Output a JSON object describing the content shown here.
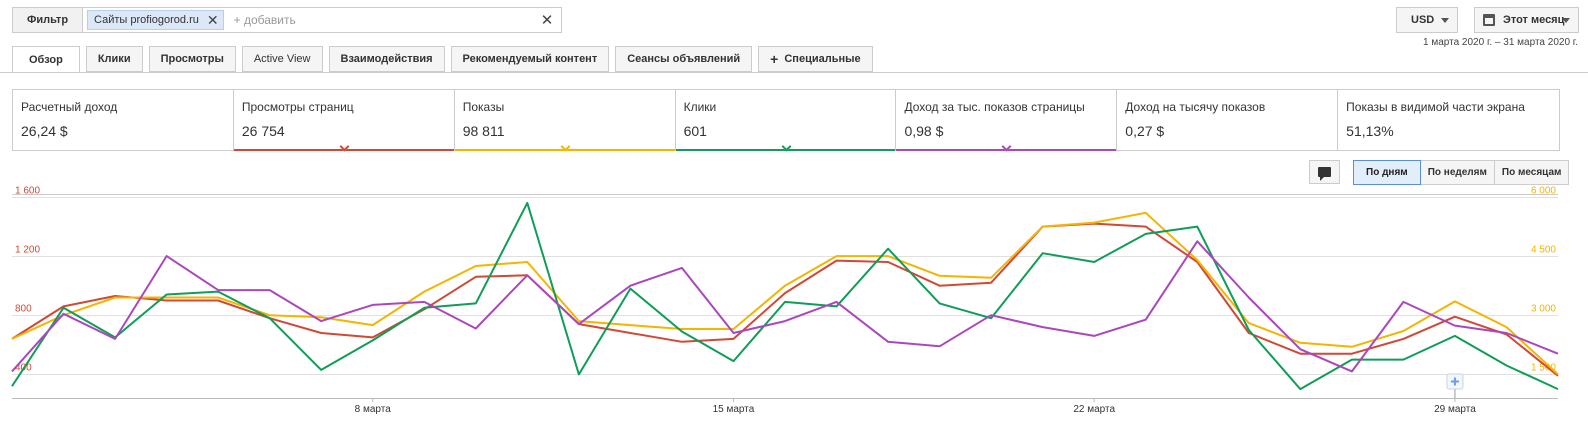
{
  "filter": {
    "button_label": "Фильтр",
    "chip_label": "Сайты profiogorod.ru",
    "add_placeholder": "+ добавить"
  },
  "currency": {
    "label": "USD"
  },
  "period": {
    "label": "Этот месяц",
    "range": "1 марта 2020 г. – 31 марта 2020 г."
  },
  "tabs": [
    {
      "label": "Обзор"
    },
    {
      "label": "Клики"
    },
    {
      "label": "Просмотры"
    },
    {
      "label": "Active View"
    },
    {
      "label": "Взаимодействия"
    },
    {
      "label": "Рекомендуемый контент"
    },
    {
      "label": "Сеансы объявлений"
    },
    {
      "label": "Специальные"
    }
  ],
  "metrics": [
    {
      "label": "Расчетный доход",
      "value": "26,24 $"
    },
    {
      "label": "Просмотры страниц",
      "value": "26 754",
      "color": "#d14836"
    },
    {
      "label": "Показы",
      "value": "98 811",
      "color": "#f4b400"
    },
    {
      "label": "Клики",
      "value": "601",
      "color": "#0f9d58"
    },
    {
      "label": "Доход за тыс. показов страницы",
      "value": "0,98 $",
      "color": "#ab47bc"
    },
    {
      "label": "Доход на тысячу показов",
      "value": "0,27 $"
    },
    {
      "label": "Показы в видимой части экрана",
      "value": "51,13%"
    }
  ],
  "granularity": {
    "options": [
      "По дням",
      "По неделям",
      "По месяцам"
    ],
    "selected": "По дням"
  },
  "chart_data": {
    "type": "line",
    "x": [
      "1 марта",
      "2 марта",
      "3 марта",
      "4 марта",
      "5 марта",
      "6 марта",
      "7 марта",
      "8 марта",
      "9 марта",
      "10 марта",
      "11 марта",
      "12 марта",
      "13 марта",
      "14 марта",
      "15 марта",
      "16 марта",
      "17 марта",
      "18 марта",
      "19 марта",
      "20 марта",
      "21 марта",
      "22 марта",
      "23 марта",
      "24 марта",
      "25 марта",
      "26 марта",
      "27 марта",
      "28 марта",
      "29 марта",
      "30 марта",
      "31 марта"
    ],
    "x_tick_labels": [
      "8 марта",
      "15 марта",
      "22 марта",
      "29 марта"
    ],
    "left_axis": {
      "ticks": [
        "400",
        "800",
        "1 200",
        "1 600"
      ],
      "range": [
        240,
        1600
      ],
      "color": "#d14836"
    },
    "right_axis": {
      "ticks": [
        "1 500",
        "3 000",
        "4 500",
        "6 000"
      ],
      "range": [
        900,
        6000
      ],
      "color": "#f4b400"
    },
    "series": [
      {
        "name": "Просмотры страниц",
        "axis": "left",
        "color": "#d14836",
        "values": [
          640,
          860,
          930,
          900,
          900,
          780,
          680,
          650,
          840,
          1060,
          1070,
          740,
          680,
          620,
          640,
          950,
          1170,
          1160,
          1000,
          1020,
          1400,
          1420,
          1400,
          1160,
          680,
          540,
          540,
          640,
          790,
          670,
          390
        ]
      },
      {
        "name": "Показы",
        "axis": "right",
        "color": "#f4b400",
        "values": [
          2400,
          3000,
          3450,
          3450,
          3450,
          3000,
          2950,
          2750,
          3600,
          4250,
          4350,
          2850,
          2750,
          2650,
          2650,
          3750,
          4500,
          4500,
          4000,
          3950,
          5250,
          5350,
          5600,
          4400,
          2800,
          2300,
          2200,
          2600,
          3350,
          2700,
          1500
        ]
      },
      {
        "name": "Клики",
        "axis": "left",
        "color": "#0f9d58",
        "values": [
          320,
          850,
          650,
          940,
          960,
          780,
          430,
          630,
          850,
          880,
          1560,
          400,
          980,
          690,
          490,
          890,
          860,
          1250,
          880,
          780,
          1220,
          1160,
          1350,
          1400,
          700,
          300,
          500,
          500,
          660,
          460,
          300
        ]
      },
      {
        "name": "Доход за тыс. показов страницы",
        "axis": "left",
        "color": "#ab47bc",
        "values": [
          420,
          810,
          640,
          1200,
          970,
          970,
          760,
          870,
          890,
          710,
          1070,
          740,
          1000,
          1120,
          680,
          760,
          890,
          620,
          590,
          800,
          720,
          660,
          770,
          1300,
          920,
          570,
          420,
          890,
          730,
          680,
          540
        ]
      }
    ]
  }
}
